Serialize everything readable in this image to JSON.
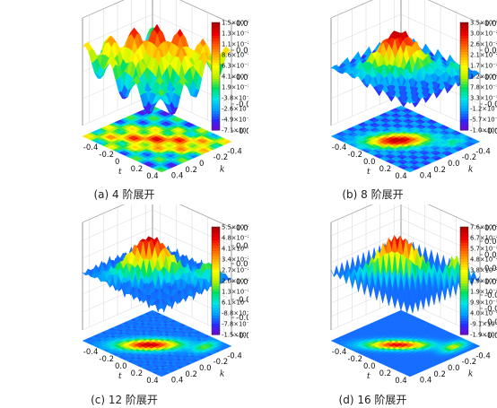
{
  "chart_data": [
    {
      "type": "surface",
      "caption": "(a)  4 阶展开",
      "xlabel": "t",
      "ylabel": "k",
      "x_ticks": [
        "-0.4",
        "-0.2",
        "0",
        "0.2",
        "0.4"
      ],
      "y_ticks": [
        "0.4",
        "0.2",
        "0",
        "-0.2",
        "-0.4"
      ],
      "x_range": [
        -0.5,
        0.5
      ],
      "y_range": [
        -0.5,
        0.5
      ],
      "z_range": [
        -0.02,
        0.02
      ],
      "z_ticks": [
        "0.02",
        "0.01",
        "0.00",
        "-0.01",
        "-0.02"
      ],
      "colorbar_labels": [
        "1.5×10⁻²",
        "1.3×10⁻²",
        "1.1×10⁻²",
        "8.6×10⁻³",
        "6.3×10⁻³",
        "4.1×10⁻³",
        "1.9×10⁻³",
        "-3.8×10⁻⁴",
        "-2.6×10⁻³",
        "-4.9×10⁻³",
        "-7.1×10⁻³"
      ],
      "order": 4,
      "projected_contour": true
    },
    {
      "type": "surface",
      "caption": "(b)  8 阶展开",
      "xlabel": "t",
      "ylabel": "k",
      "x_ticks": [
        "-0.4",
        "-0.2",
        "0.0",
        "0.2",
        "0.4"
      ],
      "y_ticks": [
        "0.4",
        "0.2",
        "0.0",
        "-0.2",
        "-0.4"
      ],
      "x_range": [
        -0.5,
        0.5
      ],
      "y_range": [
        -0.5,
        0.5
      ],
      "z_range": [
        -0.04,
        0.04
      ],
      "z_ticks": [
        "0.04",
        "0.02",
        "0.00",
        "-0.02",
        "-0.04"
      ],
      "colorbar_labels": [
        "3.5×10⁻²",
        "3.0×10⁻²",
        "2.6×10⁻²",
        "2.1×10⁻²",
        "1.7×10⁻²",
        "1.2×10⁻²",
        "7.8×10⁻³",
        "3.3×10⁻³",
        "-1.2×10⁻³",
        "-5.7×10⁻³",
        "-1.0×10⁻²"
      ],
      "order": 8,
      "projected_contour": true
    },
    {
      "type": "surface",
      "caption": "(c)  12 阶展开",
      "xlabel": "t",
      "ylabel": "k",
      "x_ticks": [
        "-0.4",
        "-0.2",
        "0.0",
        "0.2",
        "0.4"
      ],
      "y_ticks": [
        "0.4",
        "0.2",
        "0.0",
        "-0.2",
        "-0.4"
      ],
      "x_range": [
        -0.5,
        0.5
      ],
      "y_range": [
        -0.5,
        0.5
      ],
      "z_range": [
        -0.06,
        0.06
      ],
      "z_ticks": [
        "0.06",
        "0.04",
        "0.02",
        "0.00",
        "-0.02",
        "-0.04",
        "-0.06"
      ],
      "colorbar_labels": [
        "5.5×10⁻²",
        "4.8×10⁻²",
        "4.1×10⁻²",
        "3.4×10⁻²",
        "2.7×10⁻²",
        "2.0×10⁻²",
        "1.3×10⁻²",
        "6.1×10⁻³",
        "-8.8×10⁻⁴",
        "-7.8×10⁻³",
        "-1.5×10⁻²"
      ],
      "order": 12,
      "projected_contour": true
    },
    {
      "type": "surface",
      "caption": "(d)  16 阶展开",
      "xlabel": "t",
      "ylabel": "k",
      "x_ticks": [
        "-0.4",
        "-0.2",
        "0.0",
        "0.2",
        "0.4"
      ],
      "y_ticks": [
        "0.4",
        "0.2",
        "0.0",
        "-0.2",
        "-0.4"
      ],
      "x_range": [
        -0.5,
        0.5
      ],
      "y_range": [
        -0.5,
        0.5
      ],
      "z_range": [
        -0.08,
        0.08
      ],
      "z_ticks": [
        "0.08",
        "0.06",
        "0.04",
        "0.02",
        "0.00",
        "-0.02",
        "-0.04",
        "-0.06",
        "-0.08"
      ],
      "colorbar_labels": [
        "7.6×10⁻²",
        "6.7×10⁻²",
        "5.7×10⁻²",
        "4.8×10⁻²",
        "3.8×10⁻²",
        "2.9×10⁻²",
        "1.9×10⁻²",
        "9.9×10⁻³",
        "4.0×10⁻⁴",
        "-9.1×10⁻³",
        "-1.9×10⁻²"
      ],
      "order": 16,
      "projected_contour": true
    }
  ],
  "colormap": [
    "#7a00c8",
    "#2a2aff",
    "#00a0ff",
    "#00e5e5",
    "#00e060",
    "#b4f000",
    "#ffff00",
    "#ffb000",
    "#ff5a00",
    "#f00000",
    "#b00000"
  ]
}
